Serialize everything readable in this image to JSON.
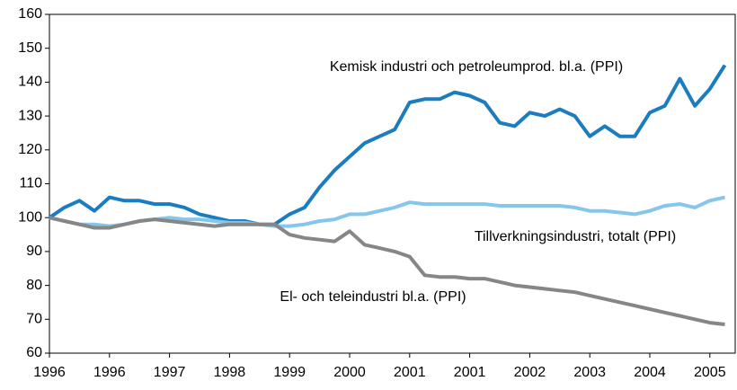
{
  "chart_data": {
    "type": "line",
    "categories": [
      "1996",
      null,
      null,
      null,
      "1996",
      null,
      null,
      null,
      "1997",
      null,
      null,
      null,
      "1998",
      null,
      null,
      null,
      "1999",
      null,
      null,
      null,
      "2000",
      null,
      null,
      null,
      "2001",
      null,
      null,
      null,
      "2001",
      null,
      null,
      null,
      "2002",
      null,
      null,
      null,
      "2003",
      null,
      null,
      null,
      "2004",
      null,
      null,
      null,
      "2005",
      null
    ],
    "series": [
      {
        "name": "Kemisk industri och petroleumprod. bl.a. (PPI)",
        "color": "#1b7cc0",
        "values": [
          100,
          103,
          105,
          102,
          106,
          105,
          105,
          104,
          104,
          103,
          101,
          100,
          99,
          99,
          98,
          98,
          101,
          103,
          109,
          114,
          118,
          122,
          124,
          126,
          134,
          135,
          135,
          137,
          136,
          134,
          128,
          127,
          131,
          130,
          132,
          130,
          124,
          127,
          124,
          124,
          131,
          133,
          141,
          133,
          138,
          145
        ]
      },
      {
        "name": "Tillverkningsindustri, totalt (PPI)",
        "color": "#86c6ea",
        "values": [
          100,
          99,
          98,
          98,
          97.5,
          98,
          99,
          99.5,
          100,
          99.5,
          99.5,
          99,
          98.5,
          98.5,
          98,
          97.5,
          97.5,
          98,
          99,
          99.5,
          101,
          101,
          102,
          103,
          104.5,
          104,
          104,
          104,
          104,
          104,
          103.5,
          103.5,
          103.5,
          103.5,
          103.5,
          103,
          102,
          102,
          101.5,
          101,
          102,
          103.5,
          104,
          103,
          105,
          106
        ]
      },
      {
        "name": "El- och teleindustri bl.a. (PPI)",
        "color": "#868686",
        "values": [
          100,
          99,
          98,
          97,
          97,
          98,
          99,
          99.5,
          99,
          98.5,
          98,
          97.5,
          98,
          98,
          98,
          98,
          95,
          94,
          93.5,
          93,
          96,
          92,
          91,
          90,
          88.5,
          83,
          82.5,
          82.5,
          82,
          82,
          81,
          80,
          79.5,
          79,
          78.5,
          78,
          77,
          76,
          75,
          74,
          73,
          72,
          71,
          70,
          69,
          68.5
        ]
      }
    ],
    "ylim": [
      60,
      160
    ],
    "yticks": [
      60,
      70,
      80,
      90,
      100,
      110,
      120,
      130,
      140,
      150,
      160
    ],
    "grid": false
  }
}
